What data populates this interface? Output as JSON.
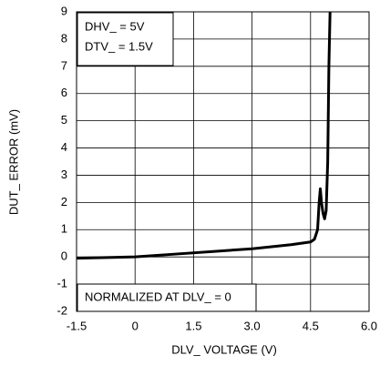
{
  "chart_data": {
    "type": "line",
    "xlabel": "DLV_ VOLTAGE (V)",
    "ylabel": "DUT_ ERROR (mV)",
    "annotations": [
      "DHV_ = 5V",
      "DTV_ = 1.5V",
      "NORMALIZED AT DLV_ = 0"
    ],
    "x": [
      -1.5,
      -1,
      0,
      1,
      2,
      3,
      4,
      4.5,
      4.6,
      4.68,
      4.72,
      4.75,
      4.78,
      4.82,
      4.86,
      4.9,
      4.94,
      4.97,
      5.0
    ],
    "series": [
      {
        "color": "#000000",
        "values": [
          -0.05,
          -0.03,
          0,
          0.1,
          0.2,
          0.3,
          0.45,
          0.55,
          0.65,
          1.0,
          2.0,
          2.5,
          2.0,
          1.6,
          1.4,
          1.7,
          3.5,
          7,
          9
        ]
      }
    ],
    "xlim": [
      -1.5,
      6.0
    ],
    "ylim": [
      -2,
      9
    ],
    "xticks": [
      -1.5,
      0,
      1.5,
      {
        "value": 3.0,
        "label": "3.0"
      },
      4.5,
      {
        "value": 6.0,
        "label": "6.0"
      }
    ],
    "yticks": [
      -2,
      -1,
      0,
      1,
      2,
      3,
      4,
      5,
      6,
      7,
      8,
      9
    ],
    "grid": true
  }
}
